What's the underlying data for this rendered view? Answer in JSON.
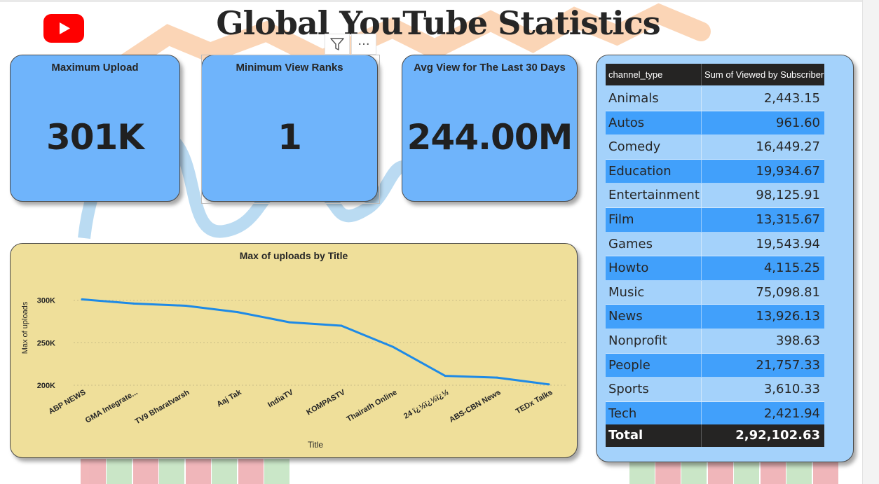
{
  "header": {
    "title": "Global YouTube Statistics",
    "logo_icon": "youtube-play-icon",
    "logo_color": "#ff0000"
  },
  "visual_header": {
    "filter_icon": "filter-funnel-icon",
    "more_icon": "more-options-icon",
    "more_glyph": "···"
  },
  "kpis": [
    {
      "label": "Maximum Upload",
      "value": "301K"
    },
    {
      "label": "Minimum View Ranks",
      "value": "1"
    },
    {
      "label": "Avg View for The Last 30 Days",
      "value": "244.00M"
    }
  ],
  "colors": {
    "kpi_card": "#6fb4fb",
    "chart_card": "#efdf9a",
    "table_card": "#a4d2fb",
    "table_alt_row": "#41a0fb",
    "line": "#1e8ae6",
    "table_header": "#252423"
  },
  "chart_data": {
    "type": "line",
    "title": "Max of uploads by Title",
    "xlabel": "Title",
    "ylabel": "Max of uploads",
    "categories": [
      "ABP NEWS",
      "GMA Integrate...",
      "TV9 Bharatvarsh",
      "Aaj Tak",
      "IndiaTV",
      "KOMPASTV",
      "Thairath Online",
      "24 ï¿½ï¿½ï¿½",
      "ABS-CBN News",
      "TEDx Talks"
    ],
    "values": [
      301000,
      296000,
      293500,
      286000,
      274000,
      270000,
      245000,
      211000,
      209000,
      201000
    ],
    "y_ticks": [
      {
        "value": 200000,
        "label": "200K"
      },
      {
        "value": 250000,
        "label": "250K"
      },
      {
        "value": 300000,
        "label": "300K"
      }
    ],
    "ylim": [
      200000,
      312000
    ],
    "grid": true
  },
  "table": {
    "columns": [
      "channel_type",
      "Sum of Viewed by Subscriber"
    ],
    "rows": [
      {
        "type": "Animals",
        "value": "2,443.15"
      },
      {
        "type": "Autos",
        "value": "961.60"
      },
      {
        "type": "Comedy",
        "value": "16,449.27"
      },
      {
        "type": "Education",
        "value": "19,934.67"
      },
      {
        "type": "Entertainment",
        "value": "98,125.91"
      },
      {
        "type": "Film",
        "value": "13,315.67"
      },
      {
        "type": "Games",
        "value": "19,543.94"
      },
      {
        "type": "Howto",
        "value": "4,115.25"
      },
      {
        "type": "Music",
        "value": "75,098.81"
      },
      {
        "type": "News",
        "value": "13,926.13"
      },
      {
        "type": "Nonprofit",
        "value": "398.63"
      },
      {
        "type": "People",
        "value": "21,757.33"
      },
      {
        "type": "Sports",
        "value": "3,610.33"
      },
      {
        "type": "Tech",
        "value": "2,421.94"
      }
    ],
    "total_label": "Total",
    "total_value": "2,92,102.63"
  }
}
